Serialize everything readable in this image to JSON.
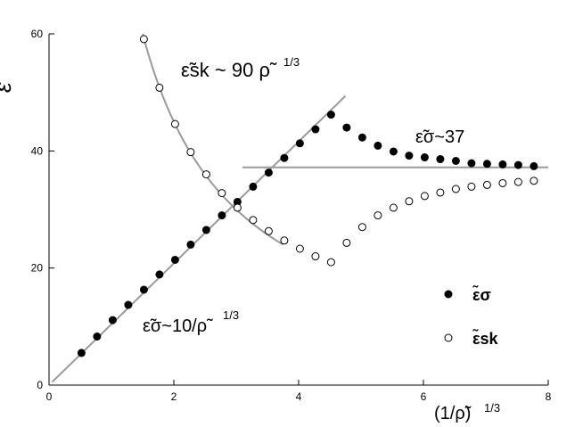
{
  "chart_data": {
    "type": "scatter",
    "title": "",
    "xlabel": "(1/ρ̃)",
    "xlabel_exp": "1/3",
    "ylabel": "ε̃",
    "xlim": [
      0,
      8
    ],
    "ylim": [
      0,
      60
    ],
    "xticks": [
      0,
      2,
      4,
      6,
      8
    ],
    "yticks": [
      0,
      20,
      40,
      60
    ],
    "grid": false,
    "legend_position": "bottom-right",
    "colors": {
      "axis": "#000000",
      "fit_line": "#999999",
      "sigma": "#000000",
      "sk": "#ffffff"
    },
    "series": [
      {
        "name": "ε̃σ",
        "marker": "filled-circle",
        "x": [
          0.52,
          0.77,
          1.02,
          1.27,
          1.52,
          1.77,
          2.02,
          2.27,
          2.52,
          2.77,
          3.02,
          3.27,
          3.52,
          3.77,
          4.02,
          4.27,
          4.52,
          4.77,
          5.02,
          5.27,
          5.52,
          5.77,
          6.02,
          6.27,
          6.52,
          6.77,
          7.02,
          7.27,
          7.52,
          7.77
        ],
        "y": [
          5.5,
          8.3,
          11.1,
          13.7,
          16.3,
          18.9,
          21.4,
          24.0,
          26.5,
          29.0,
          31.3,
          33.9,
          36.3,
          38.8,
          41.3,
          43.7,
          46.2,
          44.0,
          42.3,
          40.9,
          39.9,
          39.2,
          38.9,
          38.6,
          38.3,
          37.9,
          37.8,
          37.7,
          37.6,
          37.4
        ]
      },
      {
        "name": "ε̃sk",
        "marker": "open-circle",
        "x": [
          1.52,
          1.77,
          2.02,
          2.27,
          2.52,
          2.77,
          3.02,
          3.27,
          3.52,
          3.77,
          4.02,
          4.27,
          4.52,
          4.77,
          5.02,
          5.27,
          5.52,
          5.77,
          6.02,
          6.27,
          6.52,
          6.77,
          7.02,
          7.27,
          7.52,
          7.77
        ],
        "y": [
          59.1,
          50.8,
          44.6,
          39.8,
          36.0,
          32.8,
          30.3,
          28.2,
          26.3,
          24.7,
          23.3,
          22.0,
          21.0,
          24.3,
          27.0,
          29.0,
          30.3,
          31.4,
          32.3,
          32.9,
          33.5,
          33.9,
          34.2,
          34.5,
          34.7,
          34.9
        ]
      }
    ],
    "fit_lines": [
      {
        "label": "ε̃σ~10/ρ̃",
        "exp": "1/3",
        "kind": "linear",
        "slope": 10.4,
        "x_range": [
          0.05,
          4.75
        ]
      },
      {
        "label": "ε̃sk ~ 90 ρ̃",
        "exp": "1/3",
        "kind": "power",
        "coef": 90,
        "x_range": [
          1.5,
          3.75
        ]
      },
      {
        "label": "ε̃σ~37",
        "exp": "",
        "kind": "constant",
        "value": 37.2,
        "x_range": [
          3.1,
          8.0
        ]
      }
    ]
  }
}
